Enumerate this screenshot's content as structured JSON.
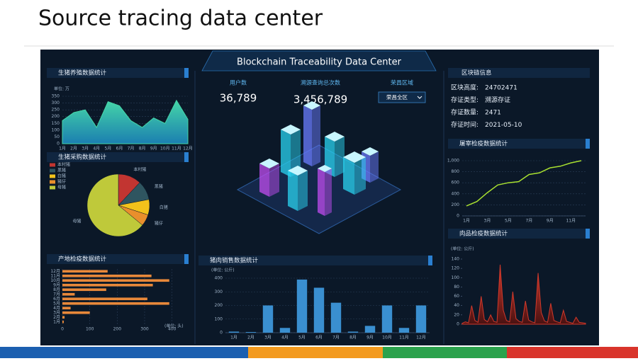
{
  "slide_title": "Source tracing data center",
  "dashboard": {
    "header": "Blockchain Traceability Data Center",
    "stats": [
      {
        "label": "用户数",
        "value": "36,789"
      },
      {
        "label": "溯源查询总次数",
        "value": "3,456,789"
      }
    ],
    "region_label": "荣昌区域",
    "region_select": "荣昌全区",
    "block_info": {
      "title": "区块链信息",
      "rows": [
        [
          "区块高度:",
          "24702471"
        ],
        [
          "存证类型:",
          "溯源存证"
        ],
        [
          "存证数量:",
          "2471"
        ],
        [
          "存证时间:",
          "2021-05-10"
        ]
      ]
    }
  },
  "chart_data": [
    {
      "type": "area",
      "title": "生猪养殖数据统计",
      "unit_label": "单位: 万",
      "categories": [
        "1月",
        "2月",
        "3月",
        "4月",
        "5月",
        "6月",
        "7月",
        "8月",
        "9月",
        "10月",
        "11月",
        "12月"
      ],
      "values": [
        170,
        230,
        250,
        120,
        310,
        280,
        170,
        120,
        190,
        150,
        320,
        180
      ],
      "ylim": [
        0,
        350
      ],
      "yticks": [
        0,
        50,
        100,
        150,
        200,
        250,
        300,
        350
      ],
      "color": "#45d6a8",
      "grid": true
    },
    {
      "type": "pie",
      "title": "生猪采购数据统计",
      "categories": [
        "本村猪",
        "黑猪",
        "白猪",
        "猪仔",
        "母猪"
      ],
      "values": [
        12,
        10,
        8,
        6,
        64
      ],
      "colors": [
        "#c23531",
        "#2f5560",
        "#f2c21b",
        "#e98f2c",
        "#bfc93a"
      ]
    },
    {
      "type": "barh",
      "title": "产地检疫数据统计",
      "unit_label": "(单位: 头)",
      "categories": [
        "12月",
        "11月",
        "10月",
        "9月",
        "8月",
        "7月",
        "6月",
        "5月",
        "4月",
        "3月",
        "2月",
        "1月"
      ],
      "values": [
        165,
        325,
        390,
        330,
        160,
        45,
        310,
        390,
        30,
        100,
        8,
        5
      ],
      "xlim": [
        0,
        450
      ],
      "xticks": [
        0,
        100,
        200,
        300,
        400
      ],
      "color": "#e8883a"
    },
    {
      "type": "bar",
      "title": "猪肉销售数据统计",
      "unit_label": "(单位: 公斤)",
      "categories": [
        "1月",
        "2月",
        "3月",
        "4月",
        "5月",
        "6月",
        "7月",
        "8月",
        "9月",
        "10月",
        "11月",
        "12月"
      ],
      "values": [
        8,
        5,
        200,
        35,
        390,
        330,
        220,
        8,
        50,
        200,
        35,
        200
      ],
      "ylim": [
        0,
        400
      ],
      "yticks": [
        0,
        100,
        200,
        300,
        400
      ],
      "color": "#3a8fd0",
      "grid": true
    },
    {
      "type": "line",
      "title": "屠宰检疫数据统计",
      "categories": [
        "1月",
        null,
        "3月",
        null,
        "5月",
        null,
        "7月",
        null,
        "9月",
        null,
        "11月",
        null
      ],
      "values": [
        180,
        260,
        420,
        560,
        600,
        620,
        750,
        780,
        870,
        900,
        960,
        1000
      ],
      "ylim": [
        0,
        1000
      ],
      "yticks": [
        0,
        200,
        400,
        600,
        800,
        {
          "value": 1000,
          "label": "1,000"
        }
      ],
      "color": "#a8e030",
      "grid": true
    },
    {
      "type": "area",
      "title": "肉品检疫数据统计",
      "unit_label": "(单位: 公斤)",
      "values": [
        2,
        5,
        3,
        40,
        8,
        4,
        60,
        10,
        5,
        20,
        6,
        4,
        128,
        30,
        8,
        5,
        70,
        12,
        6,
        4,
        50,
        9,
        5,
        3,
        110,
        25,
        7,
        4,
        45,
        8,
        5,
        3,
        30,
        6,
        4,
        2,
        15,
        4,
        3,
        2
      ],
      "ylim": [
        0,
        140
      ],
      "yticks": [
        0,
        20,
        40,
        60,
        80,
        100,
        120,
        140
      ],
      "color": "#d0392b",
      "grid": false
    }
  ]
}
